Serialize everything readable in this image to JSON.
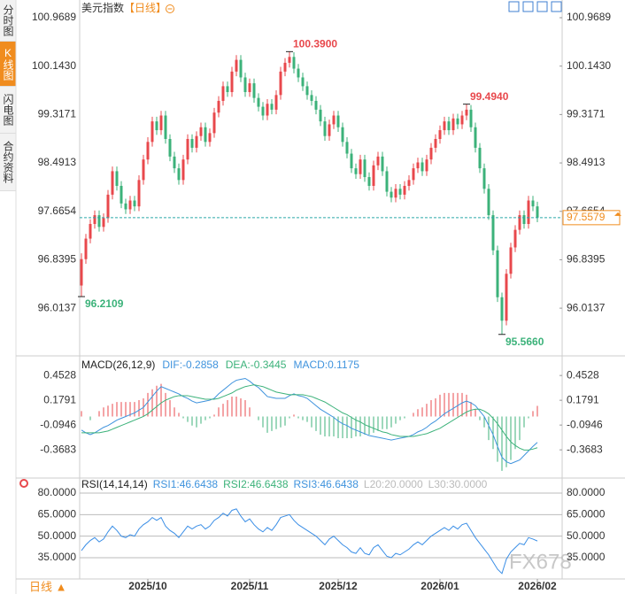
{
  "sidebar": [
    "分时图",
    "K线图",
    "闪电图",
    "合约资料"
  ],
  "header": {
    "title": "美元指数",
    "period": "【日线】"
  },
  "footer": {
    "period": "日线 ▲"
  },
  "watermark": "FX678",
  "chart_data": [
    {
      "type": "candlestick",
      "up_color": "#e8484c",
      "down_color": "#3cb27a",
      "ylim": [
        95.23,
        101.12
      ],
      "yticks": [
        100.9689,
        {
          "value": 100.143,
          "label": "100.1430"
        },
        99.3171,
        98.4913,
        97.6654,
        96.8395,
        96.0137
      ],
      "last_price": 97.5579,
      "annotations": [
        {
          "value": 100.39,
          "label": "100.3900"
        },
        {
          "value": 99.494,
          "label": "99.4940"
        },
        {
          "value": 96.2109,
          "label": "96.2109"
        },
        {
          "value": 95.566,
          "label": "95.5660"
        }
      ],
      "candles": [
        [
          96.4,
          96.95,
          96.2109,
          96.85
        ],
        [
          96.85,
          97.28,
          96.77,
          97.2
        ],
        [
          97.2,
          97.53,
          97.12,
          97.45
        ],
        [
          97.45,
          97.68,
          97.37,
          97.6
        ],
        [
          97.6,
          97.68,
          97.32,
          97.4
        ],
        [
          97.4,
          97.63,
          97.32,
          97.55
        ],
        [
          97.55,
          98.03,
          97.47,
          97.95
        ],
        [
          97.95,
          98.43,
          97.87,
          98.35
        ],
        [
          98.35,
          98.43,
          98.02,
          98.1
        ],
        [
          98.1,
          98.18,
          97.72,
          97.8
        ],
        [
          97.8,
          97.88,
          97.62,
          97.7
        ],
        [
          97.7,
          97.93,
          97.62,
          97.85
        ],
        [
          97.85,
          97.93,
          97.67,
          97.75
        ],
        [
          97.75,
          98.28,
          97.67,
          98.2
        ],
        [
          98.2,
          98.63,
          98.12,
          98.55
        ],
        [
          98.55,
          98.93,
          98.47,
          98.85
        ],
        [
          98.85,
          99.28,
          98.77,
          99.2
        ],
        [
          99.2,
          99.28,
          98.97,
          99.05
        ],
        [
          99.05,
          99.38,
          98.97,
          99.3
        ],
        [
          99.3,
          99.38,
          98.82,
          98.9
        ],
        [
          98.9,
          98.98,
          98.52,
          98.6
        ],
        [
          98.6,
          98.68,
          98.32,
          98.4
        ],
        [
          98.4,
          98.48,
          98.12,
          98.2
        ],
        [
          98.2,
          98.63,
          98.12,
          98.55
        ],
        [
          98.55,
          98.98,
          98.47,
          98.9
        ],
        [
          98.9,
          98.98,
          98.67,
          98.75
        ],
        [
          98.75,
          99.03,
          98.67,
          98.95
        ],
        [
          98.95,
          99.18,
          98.87,
          99.1
        ],
        [
          99.1,
          99.18,
          98.77,
          98.85
        ],
        [
          98.85,
          99.08,
          98.77,
          99.0
        ],
        [
          99.0,
          99.43,
          98.92,
          99.35
        ],
        [
          99.35,
          99.63,
          99.27,
          99.55
        ],
        [
          99.55,
          99.88,
          99.47,
          99.8
        ],
        [
          99.8,
          99.88,
          99.62,
          99.7
        ],
        [
          99.7,
          100.13,
          99.62,
          100.05
        ],
        [
          100.05,
          100.33,
          99.97,
          100.25
        ],
        [
          100.25,
          100.33,
          99.87,
          99.95
        ],
        [
          99.95,
          100.03,
          99.62,
          99.7
        ],
        [
          99.7,
          99.93,
          99.62,
          99.85
        ],
        [
          99.85,
          99.93,
          99.52,
          99.6
        ],
        [
          99.6,
          99.68,
          99.37,
          99.45
        ],
        [
          99.45,
          99.53,
          99.22,
          99.3
        ],
        [
          99.3,
          99.58,
          99.22,
          99.5
        ],
        [
          99.5,
          99.58,
          99.32,
          99.4
        ],
        [
          99.4,
          99.73,
          99.32,
          99.65
        ],
        [
          99.65,
          100.13,
          99.57,
          100.05
        ],
        [
          100.05,
          100.28,
          99.97,
          100.2
        ],
        [
          100.2,
          100.39,
          100.12,
          100.3
        ],
        [
          100.3,
          100.38,
          100.02,
          100.1
        ],
        [
          100.1,
          100.18,
          99.87,
          99.95
        ],
        [
          99.95,
          100.03,
          99.72,
          99.8
        ],
        [
          99.8,
          99.88,
          99.57,
          99.65
        ],
        [
          99.65,
          99.73,
          99.47,
          99.55
        ],
        [
          99.55,
          99.63,
          99.32,
          99.4
        ],
        [
          99.4,
          99.48,
          99.12,
          99.2
        ],
        [
          99.2,
          99.28,
          98.87,
          98.95
        ],
        [
          98.95,
          99.23,
          98.87,
          99.15
        ],
        [
          99.15,
          99.38,
          99.07,
          99.3
        ],
        [
          99.3,
          99.38,
          99.02,
          99.1
        ],
        [
          99.1,
          99.18,
          98.77,
          98.85
        ],
        [
          98.85,
          98.93,
          98.57,
          98.65
        ],
        [
          98.65,
          98.73,
          98.32,
          98.4
        ],
        [
          98.4,
          98.48,
          98.22,
          98.3
        ],
        [
          98.3,
          98.63,
          98.22,
          98.55
        ],
        [
          98.55,
          98.63,
          98.17,
          98.25
        ],
        [
          98.25,
          98.33,
          98.02,
          98.1
        ],
        [
          98.1,
          98.53,
          98.02,
          98.45
        ],
        [
          98.45,
          98.68,
          98.37,
          98.6
        ],
        [
          98.6,
          98.68,
          98.27,
          98.35
        ],
        [
          98.35,
          98.43,
          97.92,
          98.0
        ],
        [
          98.0,
          98.08,
          97.82,
          97.9
        ],
        [
          97.9,
          98.13,
          97.82,
          98.05
        ],
        [
          98.05,
          98.13,
          97.87,
          97.95
        ],
        [
          97.95,
          98.18,
          97.87,
          98.1
        ],
        [
          98.1,
          98.28,
          98.02,
          98.2
        ],
        [
          98.2,
          98.48,
          98.12,
          98.4
        ],
        [
          98.4,
          98.58,
          98.32,
          98.5
        ],
        [
          98.5,
          98.58,
          98.27,
          98.35
        ],
        [
          98.35,
          98.63,
          98.27,
          98.55
        ],
        [
          98.55,
          98.83,
          98.47,
          98.75
        ],
        [
          98.75,
          98.98,
          98.67,
          98.9
        ],
        [
          98.9,
          99.13,
          98.82,
          99.05
        ],
        [
          99.05,
          99.28,
          98.97,
          99.2
        ],
        [
          99.2,
          99.28,
          98.97,
          99.05
        ],
        [
          99.05,
          99.33,
          98.97,
          99.25
        ],
        [
          99.25,
          99.33,
          99.07,
          99.15
        ],
        [
          99.15,
          99.38,
          99.07,
          99.3
        ],
        [
          99.3,
          99.494,
          99.22,
          99.4
        ],
        [
          99.4,
          99.48,
          99.02,
          99.1
        ],
        [
          99.1,
          99.18,
          98.67,
          98.75
        ],
        [
          98.75,
          98.83,
          98.32,
          98.4
        ],
        [
          98.4,
          98.48,
          97.97,
          98.05
        ],
        [
          98.05,
          98.13,
          97.52,
          97.6
        ],
        [
          97.6,
          97.68,
          96.92,
          97.0
        ],
        [
          97.0,
          97.08,
          96.12,
          96.2
        ],
        [
          96.2,
          96.28,
          95.566,
          95.8
        ],
        [
          95.8,
          96.68,
          95.72,
          96.6
        ],
        [
          96.6,
          97.13,
          96.52,
          97.05
        ],
        [
          97.05,
          97.43,
          96.97,
          97.35
        ],
        [
          97.35,
          97.68,
          97.27,
          97.6
        ],
        [
          97.6,
          97.68,
          97.37,
          97.45
        ],
        [
          97.45,
          97.93,
          97.37,
          97.85
        ],
        [
          97.85,
          97.93,
          97.67,
          97.75
        ],
        [
          97.75,
          97.83,
          97.48,
          97.5579
        ]
      ]
    },
    {
      "type": "macd",
      "title": "MACD(26,12,9)",
      "up_color": "#e8484c",
      "down_color": "#3cb27a",
      "ylim": [
        -0.66,
        0.64
      ],
      "yticks": [
        0.4528,
        0.1791,
        -0.0946,
        -0.3683
      ],
      "series": [
        {
          "name": "DIF:-0.2858",
          "color": "#3f93dd",
          "values": [
            -0.15,
            -0.18,
            -0.2,
            -0.18,
            -0.15,
            -0.12,
            -0.1,
            -0.07,
            -0.04,
            -0.02,
            0.0,
            0.02,
            0.04,
            0.07,
            0.1,
            0.16,
            0.22,
            0.28,
            0.33,
            0.31,
            0.29,
            0.27,
            0.25,
            0.22,
            0.2,
            0.17,
            0.15,
            0.16,
            0.17,
            0.18,
            0.2,
            0.25,
            0.29,
            0.33,
            0.37,
            0.4,
            0.41,
            0.42,
            0.39,
            0.35,
            0.32,
            0.27,
            0.22,
            0.21,
            0.2,
            0.2,
            0.2,
            0.23,
            0.25,
            0.23,
            0.22,
            0.2,
            0.16,
            0.12,
            0.08,
            0.05,
            0.02,
            -0.01,
            -0.05,
            -0.08,
            -0.1,
            -0.13,
            -0.15,
            -0.17,
            -0.19,
            -0.21,
            -0.22,
            -0.23,
            -0.24,
            -0.25,
            -0.26,
            -0.25,
            -0.24,
            -0.23,
            -0.22,
            -0.2,
            -0.17,
            -0.15,
            -0.12,
            -0.08,
            -0.05,
            -0.01,
            0.03,
            0.06,
            0.09,
            0.12,
            0.15,
            0.17,
            0.15,
            0.12,
            0.06,
            0.0,
            -0.1,
            -0.2,
            -0.33,
            -0.45,
            -0.5,
            -0.52,
            -0.5,
            -0.48,
            -0.43,
            -0.38,
            -0.33,
            -0.2858
          ]
        },
        {
          "name": "DEA:-0.3445",
          "color": "#3cb27a",
          "values": [
            -0.18,
            -0.18,
            -0.18,
            -0.18,
            -0.18,
            -0.17,
            -0.16,
            -0.14,
            -0.12,
            -0.1,
            -0.08,
            -0.06,
            -0.04,
            -0.02,
            0.0,
            0.03,
            0.07,
            0.11,
            0.15,
            0.18,
            0.2,
            0.22,
            0.23,
            0.23,
            0.23,
            0.22,
            0.21,
            0.2,
            0.19,
            0.19,
            0.19,
            0.2,
            0.22,
            0.24,
            0.26,
            0.29,
            0.31,
            0.33,
            0.34,
            0.35,
            0.34,
            0.33,
            0.31,
            0.29,
            0.27,
            0.26,
            0.25,
            0.24,
            0.24,
            0.24,
            0.24,
            0.23,
            0.22,
            0.2,
            0.18,
            0.16,
            0.13,
            0.1,
            0.07,
            0.04,
            0.02,
            -0.01,
            -0.04,
            -0.06,
            -0.09,
            -0.11,
            -0.13,
            -0.15,
            -0.17,
            -0.18,
            -0.2,
            -0.21,
            -0.22,
            -0.22,
            -0.22,
            -0.22,
            -0.21,
            -0.2,
            -0.19,
            -0.17,
            -0.15,
            -0.13,
            -0.1,
            -0.07,
            -0.04,
            -0.01,
            0.02,
            0.05,
            0.07,
            0.08,
            0.08,
            0.06,
            0.03,
            -0.02,
            -0.08,
            -0.15,
            -0.22,
            -0.28,
            -0.32,
            -0.35,
            -0.37,
            -0.37,
            -0.36,
            -0.3445
          ]
        }
      ],
      "histogram": {
        "name": "MACD:0.1175",
        "color": "#3f93dd",
        "values": [
          0.06,
          0.0,
          -0.04,
          0.0,
          0.06,
          0.1,
          0.12,
          0.14,
          0.16,
          0.16,
          0.16,
          0.16,
          0.16,
          0.18,
          0.2,
          0.26,
          0.3,
          0.34,
          0.36,
          0.26,
          0.18,
          0.1,
          0.04,
          -0.02,
          -0.06,
          -0.1,
          -0.12,
          -0.08,
          -0.04,
          -0.02,
          0.02,
          0.1,
          0.14,
          0.18,
          0.22,
          0.22,
          0.2,
          0.18,
          0.1,
          0.0,
          -0.04,
          -0.12,
          -0.18,
          -0.16,
          -0.14,
          -0.12,
          -0.1,
          -0.02,
          0.02,
          -0.02,
          -0.04,
          -0.06,
          -0.12,
          -0.16,
          -0.2,
          -0.22,
          -0.22,
          -0.22,
          -0.24,
          -0.24,
          -0.24,
          -0.24,
          -0.22,
          -0.22,
          -0.2,
          -0.2,
          -0.18,
          -0.16,
          -0.14,
          -0.14,
          -0.12,
          -0.08,
          -0.04,
          -0.02,
          0.0,
          0.04,
          0.08,
          0.1,
          0.14,
          0.18,
          0.2,
          0.24,
          0.26,
          0.26,
          0.26,
          0.26,
          0.26,
          0.24,
          0.16,
          0.08,
          -0.04,
          -0.12,
          -0.26,
          -0.36,
          -0.5,
          -0.6,
          -0.56,
          -0.48,
          -0.36,
          -0.26,
          -0.12,
          -0.02,
          0.06,
          0.1175
        ]
      }
    },
    {
      "type": "line",
      "title": "RSI(14,14,14)",
      "color": "#3a8ee6",
      "grid": true,
      "ylim": [
        16.5,
        87.4
      ],
      "yticks": [
        {
          "value": 80,
          "label": "80.0000"
        },
        {
          "value": 65,
          "label": "65.0000"
        },
        {
          "value": 50,
          "label": "50.0000"
        },
        {
          "value": 35,
          "label": "35.0000"
        }
      ],
      "legend": [
        {
          "label": "RSI1:46.6438",
          "color": "#3f93dd"
        },
        {
          "label": "RSI2:46.6438",
          "color": "#3cb27a"
        },
        {
          "label": "RSI3:46.6438",
          "color": "#3f93dd"
        },
        {
          "label": "L20:20.0000",
          "color": "#bbbbbb"
        },
        {
          "label": "L30:30.0000",
          "color": "#bbbbbb"
        }
      ],
      "xticks": [
        {
          "value": 15,
          "label": "2025/10"
        },
        {
          "value": 38,
          "label": "2025/11"
        },
        {
          "value": 58,
          "label": "2025/12"
        },
        {
          "value": 81,
          "label": "2026/01"
        },
        {
          "value": 103,
          "label": "2026/02"
        }
      ],
      "values": [
        40,
        44,
        47,
        49,
        46,
        48,
        53,
        57,
        54,
        50,
        49,
        51,
        50,
        55,
        58,
        60,
        63,
        61,
        63,
        57,
        54,
        52,
        49,
        53,
        57,
        55,
        57,
        58,
        55,
        57,
        61,
        63,
        66,
        64,
        68,
        69,
        64,
        60,
        62,
        58,
        55,
        53,
        56,
        54,
        58,
        63,
        64,
        65,
        61,
        58,
        56,
        54,
        52,
        50,
        47,
        44,
        48,
        50,
        47,
        44,
        42,
        39,
        38,
        42,
        38,
        37,
        42,
        44,
        40,
        36,
        35,
        38,
        37,
        39,
        41,
        44,
        46,
        44,
        47,
        50,
        52,
        54,
        56,
        54,
        57,
        55,
        58,
        59,
        54,
        49,
        45,
        41,
        37,
        32,
        27,
        24,
        34,
        39,
        42,
        45,
        44,
        49,
        48,
        46.6438
      ]
    }
  ]
}
